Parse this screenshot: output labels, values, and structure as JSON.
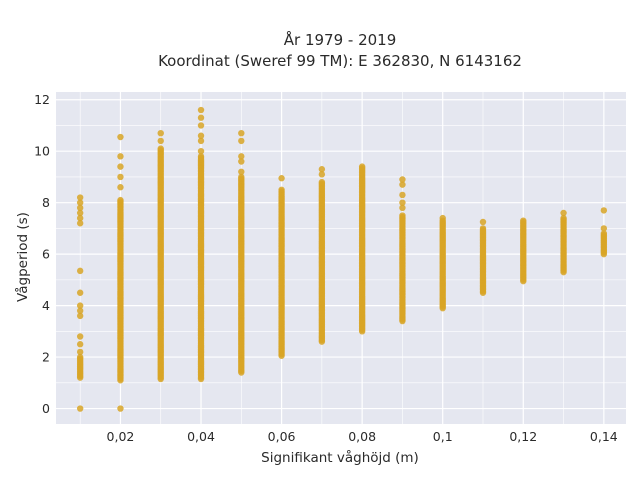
{
  "chart_data": {
    "type": "scatter",
    "title_lines": [
      "År 1979 - 2019",
      "Koordinat (Sweref 99 TM): E 362830, N 6143162"
    ],
    "xlabel": "Signifikant våghöjd (m)",
    "ylabel": "Vågperiod (s)",
    "xlim": [
      0.004,
      0.1455
    ],
    "ylim": [
      -0.6,
      12.3
    ],
    "x_ticks": [
      0.02,
      0.04,
      0.06,
      0.08,
      0.1,
      0.12,
      0.14
    ],
    "x_tick_labels": [
      "0,02",
      "0,04",
      "0,06",
      "0,08",
      "0,1",
      "0,12",
      "0,14"
    ],
    "y_ticks": [
      0,
      2,
      4,
      6,
      8,
      10,
      12
    ],
    "y_tick_labels": [
      "0",
      "2",
      "4",
      "6",
      "8",
      "10",
      "12"
    ],
    "grid": true,
    "colors": {
      "marker": "#d8a526",
      "plot_bg": "#e5e7f0",
      "grid": "#ffffff"
    },
    "series": [
      {
        "columns": [
          {
            "x": 0.01,
            "band": [
              1.2,
              2.0
            ],
            "outliers": [
              0,
              2.2,
              2.5,
              2.8,
              3.6,
              3.8,
              4.0,
              4.5,
              5.35,
              7.2,
              7.4,
              7.6,
              7.8,
              8.0,
              8.2
            ]
          },
          {
            "x": 0.02,
            "band": [
              1.1,
              8.1
            ],
            "outliers": [
              0,
              8.6,
              9.0,
              9.4,
              9.8,
              10.55
            ]
          },
          {
            "x": 0.03,
            "band": [
              1.15,
              10.1
            ],
            "outliers": [
              10.4,
              10.7
            ]
          },
          {
            "x": 0.04,
            "band": [
              1.15,
              9.8
            ],
            "outliers": [
              10.0,
              10.4,
              10.6,
              11.0,
              11.3,
              11.6
            ]
          },
          {
            "x": 0.05,
            "band": [
              1.4,
              9.0
            ],
            "outliers": [
              9.2,
              9.6,
              9.8,
              10.4,
              10.7
            ]
          },
          {
            "x": 0.06,
            "band": [
              2.05,
              8.5
            ],
            "outliers": [
              8.95
            ]
          },
          {
            "x": 0.07,
            "band": [
              2.6,
              8.8
            ],
            "outliers": [
              9.1,
              9.3
            ]
          },
          {
            "x": 0.08,
            "band": [
              3.0,
              9.4
            ],
            "outliers": []
          },
          {
            "x": 0.09,
            "band": [
              3.4,
              7.5
            ],
            "outliers": [
              7.8,
              8.0,
              8.3,
              8.7,
              8.9
            ]
          },
          {
            "x": 0.1,
            "band": [
              3.9,
              7.3
            ],
            "outliers": [
              7.4
            ]
          },
          {
            "x": 0.11,
            "band": [
              4.5,
              7.0
            ],
            "outliers": [
              7.25
            ]
          },
          {
            "x": 0.12,
            "band": [
              4.95,
              7.3
            ],
            "outliers": []
          },
          {
            "x": 0.13,
            "band": [
              5.3,
              7.4
            ],
            "outliers": [
              7.6
            ]
          },
          {
            "x": 0.14,
            "band": [
              6.0,
              6.8
            ],
            "outliers": [
              7.0,
              7.7
            ]
          }
        ]
      }
    ]
  }
}
